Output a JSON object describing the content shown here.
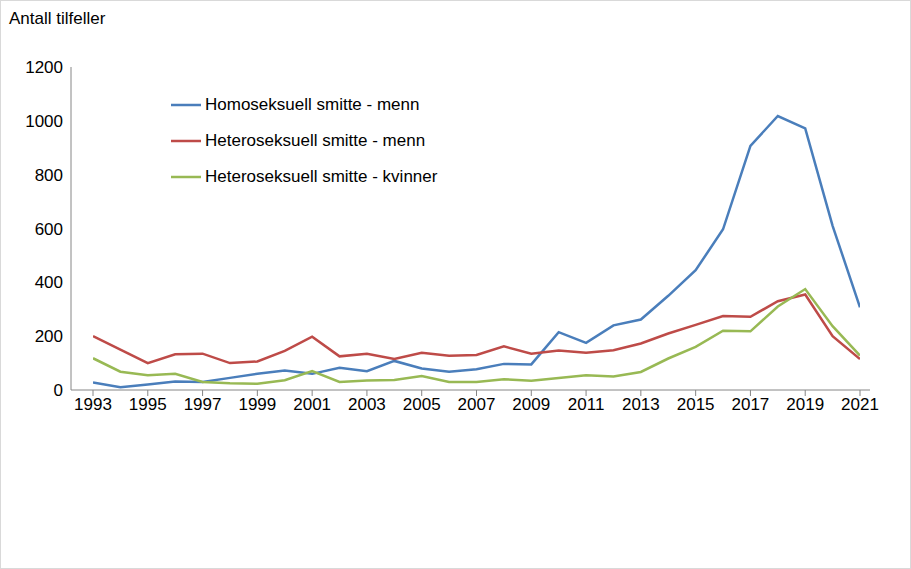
{
  "chart_data": {
    "type": "line",
    "y_label": "Antall tilfeller",
    "x": [
      1993,
      1994,
      1995,
      1996,
      1997,
      1998,
      1999,
      2000,
      2001,
      2002,
      2003,
      2004,
      2005,
      2006,
      2007,
      2008,
      2009,
      2010,
      2011,
      2012,
      2013,
      2014,
      2015,
      2016,
      2017,
      2018,
      2019,
      2020,
      2021
    ],
    "series": [
      {
        "name": "Homoseksuell smitte - menn",
        "color": "#4a7ebb",
        "values": [
          28,
          10,
          20,
          32,
          30,
          45,
          60,
          72,
          60,
          83,
          70,
          108,
          80,
          68,
          77,
          97,
          95,
          215,
          175,
          240,
          262,
          350,
          445,
          597,
          907,
          1018,
          972,
          610,
          307
        ]
      },
      {
        "name": "Heteroseksuell smitte - menn",
        "color": "#be4b48",
        "values": [
          200,
          150,
          100,
          133,
          135,
          100,
          106,
          145,
          198,
          125,
          135,
          115,
          138,
          127,
          130,
          162,
          135,
          147,
          138,
          148,
          173,
          210,
          242,
          275,
          272,
          330,
          355,
          200,
          115
        ]
      },
      {
        "name": "Heteroseksuell smitte - kvinner",
        "color": "#98b954",
        "values": [
          118,
          68,
          55,
          60,
          30,
          25,
          23,
          36,
          70,
          30,
          35,
          37,
          52,
          30,
          30,
          40,
          34,
          45,
          55,
          50,
          67,
          117,
          160,
          220,
          218,
          310,
          375,
          237,
          128
        ]
      }
    ],
    "xlim": [
      1993,
      2021
    ],
    "xticks": [
      1993,
      1995,
      1997,
      1999,
      2001,
      2003,
      2005,
      2007,
      2009,
      2011,
      2013,
      2015,
      2017,
      2019,
      2021
    ],
    "ylim": [
      0,
      1200
    ],
    "yticks": [
      0,
      200,
      400,
      600,
      800,
      1000,
      1200
    ],
    "grid": false,
    "legend": "upper left"
  }
}
